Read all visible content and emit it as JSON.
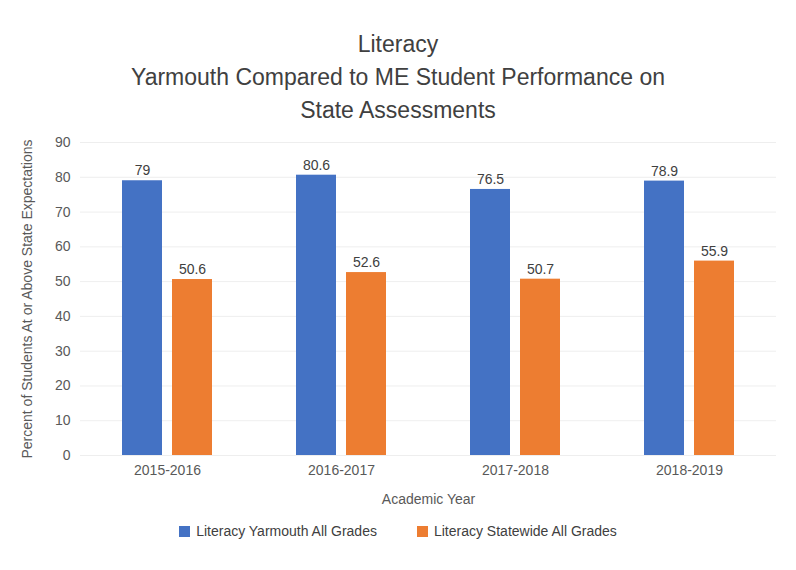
{
  "chart_data": {
    "type": "bar",
    "title": "Literacy",
    "subtitle": "Yarmouth Compared to ME Student Performance on State Assessments",
    "x_label": "Academic Year",
    "y_label": "Percent of Students At or Above State Expectations",
    "categories": [
      "2015-2016",
      "2016-2017",
      "2017-2018",
      "2018-2019"
    ],
    "series": [
      {
        "name": "Literacy Yarmouth All Grades",
        "color": "#4472c4",
        "values": [
          79,
          80.6,
          76.5,
          78.9
        ]
      },
      {
        "name": "Literacy Statewide All Grades",
        "color": "#ed7d31",
        "values": [
          50.6,
          52.6,
          50.7,
          55.9
        ]
      }
    ],
    "ylim": [
      0,
      90
    ],
    "yticks": [
      0,
      10,
      20,
      30,
      40,
      50,
      60,
      70,
      80,
      90
    ],
    "grid": true,
    "data_labels": true,
    "legend": "bottom"
  }
}
